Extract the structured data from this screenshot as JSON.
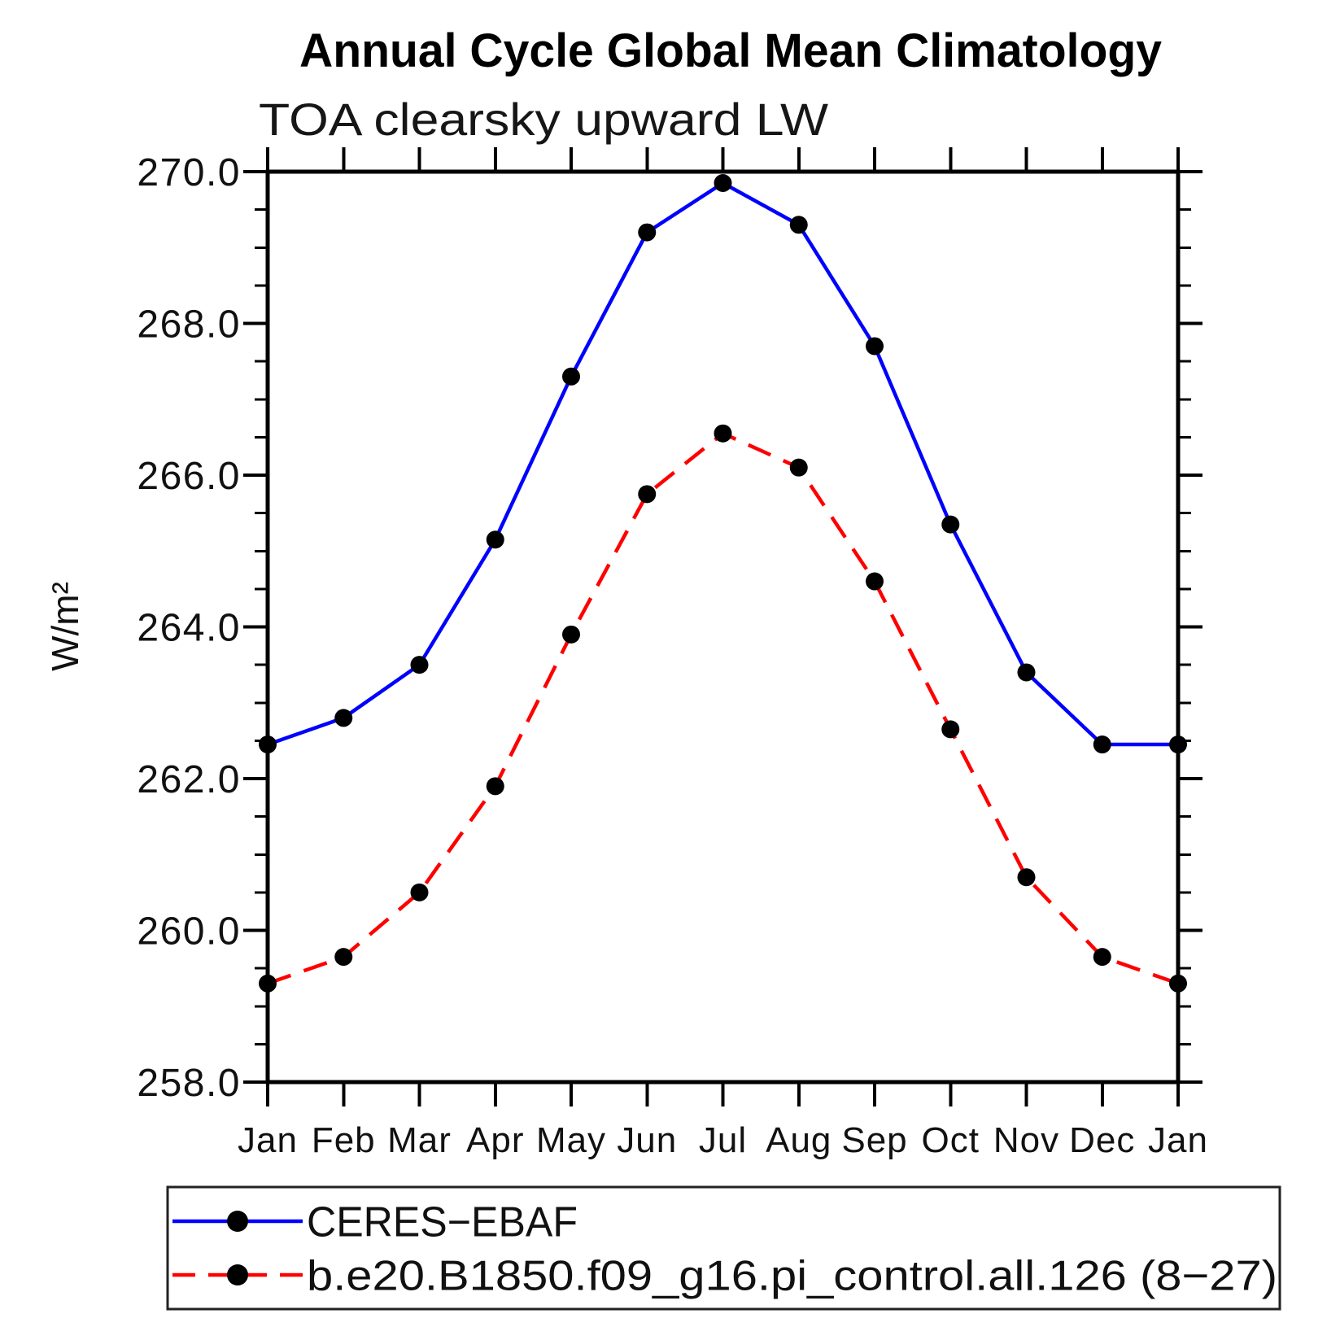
{
  "chart_data": {
    "type": "line",
    "title": "Annual Cycle Global Mean Climatology",
    "subtitle": "TOA clearsky upward LW",
    "ylabel": "W/m²",
    "categories": [
      "Jan",
      "Feb",
      "Mar",
      "Apr",
      "May",
      "Jun",
      "Jul",
      "Aug",
      "Sep",
      "Oct",
      "Nov",
      "Dec",
      "Jan"
    ],
    "series": [
      {
        "name": "CERES−EBAF",
        "color": "#0000ff",
        "line_style": "solid",
        "marker": "circle",
        "marker_color": "#000000",
        "values": [
          262.45,
          262.8,
          263.5,
          265.15,
          267.3,
          269.2,
          269.85,
          269.3,
          267.7,
          265.35,
          263.4,
          262.45,
          262.45
        ]
      },
      {
        "name": "b.e20.B1850.f09_g16.pi_control.all.126 (8−27)",
        "color": "#ff0000",
        "line_style": "dashed",
        "marker": "circle",
        "marker_color": "#000000",
        "values": [
          259.3,
          259.65,
          260.5,
          261.9,
          263.9,
          265.75,
          266.55,
          266.1,
          264.6,
          262.65,
          260.7,
          259.65,
          259.3
        ]
      }
    ],
    "ylim": [
      258.0,
      270.0
    ],
    "yticks_major": {
      "step": 2.0,
      "labels": [
        "258.0",
        "260.0",
        "262.0",
        "264.0",
        "266.0",
        "268.0",
        "270.0"
      ]
    },
    "ytick_minor_step": 0.5,
    "grid": false,
    "legend_position": "bottom-left",
    "axis_color": "#000000",
    "background_color": "#ffffff"
  }
}
